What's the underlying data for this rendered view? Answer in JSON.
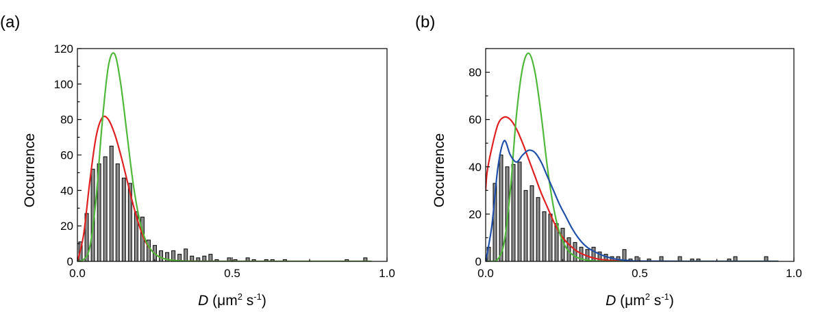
{
  "chart_data": [
    {
      "type": "bar",
      "panel_label": "(a)",
      "xlabel_var": "D",
      "xlabel_unit_open": " (",
      "xlabel_unit_mu": "μm",
      "xlabel_unit_sup2": "2",
      "xlabel_unit_s": " s",
      "xlabel_unit_supm1": "-1",
      "xlabel_unit_close": ")",
      "ylabel": "Occurrence",
      "xlim": [
        0,
        1.0
      ],
      "ylim": [
        0,
        120
      ],
      "xticks": [
        0,
        0.5,
        1.0
      ],
      "xtick_labels": [
        "0.0",
        "0.5",
        "1.0"
      ],
      "yticks": [
        0,
        20,
        40,
        60,
        80,
        100,
        120
      ],
      "ytick_labels": [
        "0",
        "20",
        "40",
        "60",
        "80",
        "100",
        "120"
      ],
      "bin_width": 0.02,
      "bins": {
        "x": [
          0.01,
          0.03,
          0.05,
          0.07,
          0.09,
          0.11,
          0.13,
          0.15,
          0.17,
          0.19,
          0.21,
          0.23,
          0.25,
          0.27,
          0.29,
          0.31,
          0.33,
          0.35,
          0.37,
          0.39,
          0.41,
          0.43,
          0.45,
          0.47,
          0.49,
          0.51,
          0.53,
          0.55,
          0.57,
          0.59,
          0.61,
          0.63,
          0.65,
          0.67,
          0.69,
          0.71,
          0.73,
          0.75,
          0.77,
          0.79,
          0.81,
          0.83,
          0.85,
          0.87,
          0.89,
          0.91,
          0.93,
          0.95,
          0.97,
          0.99
        ],
        "values": [
          11,
          27,
          52,
          55,
          59,
          65,
          55,
          47,
          44,
          28,
          25,
          12,
          9,
          6,
          5,
          6,
          4,
          7,
          3,
          2,
          3,
          4,
          1,
          0,
          2,
          1,
          0,
          2,
          1,
          0,
          1,
          1,
          0,
          1,
          0,
          0,
          0,
          0,
          0,
          0,
          0,
          0,
          0,
          1,
          0,
          0,
          2,
          0,
          0,
          0
        ]
      },
      "series": [
        {
          "name": "red",
          "color": "#e02020",
          "x": [
            0.0,
            0.02,
            0.04,
            0.06,
            0.08,
            0.1,
            0.12,
            0.14,
            0.16,
            0.18,
            0.2,
            0.22,
            0.24,
            0.26,
            0.28,
            0.3,
            0.32,
            0.36,
            0.4,
            0.5,
            0.7,
            0.95
          ],
          "values": [
            0,
            15,
            45,
            70,
            81,
            80,
            72,
            60,
            46,
            32,
            20,
            11,
            6,
            3,
            1.5,
            0.8,
            0.4,
            0.1,
            0,
            0,
            0,
            0
          ]
        },
        {
          "name": "green",
          "color": "#4fb83a",
          "x": [
            0.0,
            0.02,
            0.04,
            0.06,
            0.08,
            0.1,
            0.12,
            0.14,
            0.16,
            0.18,
            0.2,
            0.22,
            0.24,
            0.26,
            0.28,
            0.3,
            0.34,
            0.4,
            0.5,
            0.7,
            0.95
          ],
          "values": [
            0,
            1,
            8,
            35,
            78,
            110,
            117,
            100,
            72,
            44,
            24,
            12,
            6,
            3,
            1.5,
            0.8,
            0.2,
            0,
            0,
            0,
            0
          ]
        }
      ]
    },
    {
      "type": "bar",
      "panel_label": "(b)",
      "xlabel_var": "D",
      "xlabel_unit_open": " (",
      "xlabel_unit_mu": "μm",
      "xlabel_unit_sup2": "2",
      "xlabel_unit_s": " s",
      "xlabel_unit_supm1": "-1",
      "xlabel_unit_close": ")",
      "ylabel": "Occurrence",
      "xlim": [
        0,
        1.0
      ],
      "ylim": [
        0,
        90
      ],
      "xticks": [
        0,
        0.5,
        1.0
      ],
      "xtick_labels": [
        "0.0",
        "0.5",
        "1.0"
      ],
      "yticks": [
        0,
        20,
        40,
        60,
        80
      ],
      "ytick_labels": [
        "0",
        "20",
        "40",
        "60",
        "80"
      ],
      "bin_width": 0.02,
      "bins": {
        "x": [
          0.01,
          0.03,
          0.05,
          0.07,
          0.09,
          0.11,
          0.13,
          0.15,
          0.17,
          0.19,
          0.21,
          0.23,
          0.25,
          0.27,
          0.29,
          0.31,
          0.33,
          0.35,
          0.37,
          0.39,
          0.41,
          0.43,
          0.45,
          0.47,
          0.49,
          0.51,
          0.53,
          0.55,
          0.57,
          0.59,
          0.61,
          0.63,
          0.65,
          0.67,
          0.69,
          0.71,
          0.73,
          0.75,
          0.77,
          0.79,
          0.81,
          0.83,
          0.85,
          0.87,
          0.89,
          0.91,
          0.93,
          0.95,
          0.97,
          0.99
        ],
        "values": [
          6,
          33,
          45,
          40,
          41,
          42,
          30,
          32,
          27,
          21,
          20,
          16,
          14,
          10,
          8,
          6,
          5,
          6,
          4,
          3,
          2,
          2,
          5,
          1,
          2,
          0,
          1,
          0,
          2,
          0,
          0,
          2,
          0,
          1,
          1,
          0,
          0,
          0,
          0,
          1,
          2,
          0,
          0,
          0,
          0,
          2,
          0,
          0,
          0,
          0
        ]
      },
      "series": [
        {
          "name": "red",
          "color": "#e02020",
          "x": [
            0.0,
            0.005,
            0.02,
            0.04,
            0.06,
            0.08,
            0.1,
            0.12,
            0.14,
            0.16,
            0.18,
            0.2,
            0.22,
            0.24,
            0.26,
            0.28,
            0.3,
            0.34,
            0.38,
            0.42,
            0.5,
            0.7,
            0.95
          ],
          "values": [
            30,
            38,
            48,
            58,
            61,
            60,
            56,
            50,
            43,
            36,
            29,
            23,
            17,
            12,
            8.5,
            6,
            4,
            1.8,
            0.7,
            0.3,
            0,
            0,
            0
          ]
        },
        {
          "name": "green",
          "color": "#4fb83a",
          "x": [
            0.0,
            0.02,
            0.04,
            0.06,
            0.08,
            0.1,
            0.12,
            0.14,
            0.16,
            0.18,
            0.2,
            0.22,
            0.24,
            0.26,
            0.28,
            0.3,
            0.34,
            0.4,
            0.5,
            0.7,
            0.95
          ],
          "values": [
            0,
            0,
            1,
            8,
            30,
            62,
            82,
            88,
            80,
            62,
            40,
            23,
            12,
            6,
            3,
            1.5,
            0.3,
            0,
            0,
            0,
            0
          ]
        },
        {
          "name": "blue",
          "color": "#1f4fa8",
          "x": [
            0.0,
            0.02,
            0.04,
            0.06,
            0.08,
            0.1,
            0.12,
            0.14,
            0.16,
            0.18,
            0.2,
            0.22,
            0.24,
            0.26,
            0.28,
            0.3,
            0.32,
            0.34,
            0.38,
            0.42,
            0.46,
            0.5,
            0.7,
            0.95
          ],
          "values": [
            0,
            15,
            40,
            51,
            45,
            42,
            45,
            47,
            46,
            42,
            36,
            30,
            24,
            19,
            14,
            10,
            7,
            5,
            2.5,
            1,
            0.4,
            0.1,
            0,
            0
          ]
        }
      ]
    }
  ]
}
